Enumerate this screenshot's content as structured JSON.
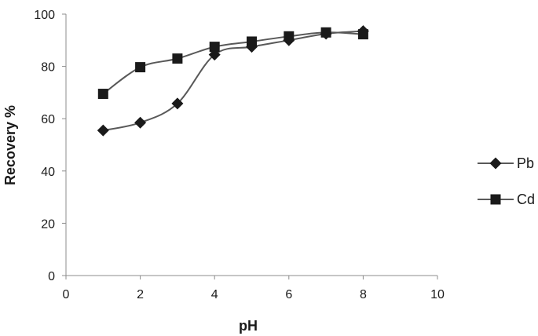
{
  "chart_data": {
    "type": "line",
    "title": "",
    "xlabel": "pH",
    "ylabel": "Recovery %",
    "xlim": [
      0,
      10
    ],
    "ylim": [
      0,
      100
    ],
    "x_ticks": [
      0,
      2,
      4,
      6,
      8,
      10
    ],
    "y_ticks": [
      0,
      20,
      40,
      60,
      80,
      100
    ],
    "grid": false,
    "legend_position": "right",
    "smoothed": true,
    "series": [
      {
        "name": "Pb",
        "marker": "diamond",
        "color": "#1a1a1a",
        "line_color": "#595959",
        "x": [
          1,
          2,
          3,
          4,
          5,
          6,
          7,
          8
        ],
        "y": [
          55.5,
          58.5,
          65.8,
          84.5,
          87.5,
          90,
          92.5,
          93.5
        ]
      },
      {
        "name": "Cd",
        "marker": "square",
        "color": "#1a1a1a",
        "line_color": "#595959",
        "x": [
          1,
          2,
          3,
          4,
          5,
          6,
          7,
          8
        ],
        "y": [
          69.5,
          79.7,
          83,
          87.5,
          89.5,
          91.5,
          93,
          92.3
        ]
      }
    ]
  }
}
